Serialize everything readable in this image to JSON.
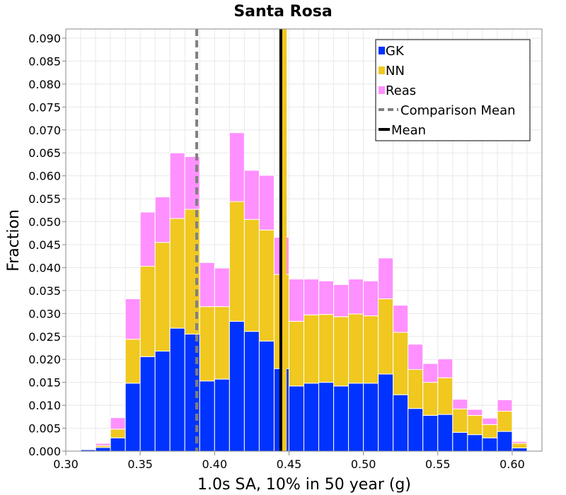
{
  "chart_data": {
    "type": "bar",
    "stacked": true,
    "title": "Santa Rosa",
    "xlabel": "1.0s SA, 10% in 50 year (g)",
    "ylabel": "Fraction",
    "xlim": [
      0.3,
      0.62
    ],
    "ylim": [
      0,
      0.092
    ],
    "x_ticks": [
      "0.30",
      "0.35",
      "0.40",
      "0.45",
      "0.50",
      "0.55",
      "0.60"
    ],
    "y_ticks": [
      "0.000",
      "0.005",
      "0.010",
      "0.015",
      "0.020",
      "0.025",
      "0.030",
      "0.035",
      "0.040",
      "0.045",
      "0.050",
      "0.055",
      "0.060",
      "0.065",
      "0.070",
      "0.075",
      "0.080",
      "0.085",
      "0.090"
    ],
    "grid": true,
    "legend_position": "top-right",
    "bin_width": 0.01,
    "bin_starts": [
      0.3,
      0.31,
      0.32,
      0.33,
      0.34,
      0.35,
      0.36,
      0.37,
      0.38,
      0.39,
      0.4,
      0.41,
      0.42,
      0.43,
      0.44,
      0.45,
      0.46,
      0.47,
      0.48,
      0.49,
      0.5,
      0.51,
      0.52,
      0.53,
      0.54,
      0.55,
      0.56,
      0.57,
      0.58,
      0.59,
      0.6
    ],
    "series": [
      {
        "name": "GK",
        "color": "#0033ff",
        "values": [
          0.0001,
          0.0003,
          0.0008,
          0.0029,
          0.0148,
          0.0206,
          0.0218,
          0.0268,
          0.0255,
          0.0153,
          0.0157,
          0.0283,
          0.0261,
          0.024,
          0.018,
          0.0142,
          0.0148,
          0.015,
          0.0142,
          0.0148,
          0.0148,
          0.0168,
          0.0123,
          0.0093,
          0.0078,
          0.008,
          0.0041,
          0.0036,
          0.0029,
          0.0043,
          0.0007
        ]
      },
      {
        "name": "NN",
        "color": "#f0c820",
        "values": [
          0.0,
          0.0,
          0.0004,
          0.0019,
          0.0096,
          0.0197,
          0.0237,
          0.0239,
          0.0272,
          0.0162,
          0.0158,
          0.0261,
          0.0244,
          0.0242,
          0.0205,
          0.0141,
          0.0149,
          0.0148,
          0.0151,
          0.0151,
          0.0147,
          0.0164,
          0.0136,
          0.0085,
          0.0072,
          0.008,
          0.0051,
          0.0042,
          0.0029,
          0.0044,
          0.001
        ]
      },
      {
        "name": "Reas",
        "color": "#ff90ff",
        "values": [
          0.0,
          0.0,
          0.0005,
          0.0025,
          0.0088,
          0.0118,
          0.0099,
          0.0143,
          0.0115,
          0.0096,
          0.0084,
          0.015,
          0.0107,
          0.0119,
          0.0081,
          0.0092,
          0.0078,
          0.0073,
          0.007,
          0.0076,
          0.0076,
          0.0089,
          0.0059,
          0.0055,
          0.0041,
          0.0041,
          0.0021,
          0.0013,
          0.0014,
          0.0025,
          0.0004
        ]
      }
    ],
    "lines": [
      {
        "name": "Comparison Mean",
        "x": 0.388,
        "color": "#808080",
        "dashed": true
      },
      {
        "name": "Mean",
        "x": 0.4445,
        "color": "#000000",
        "dashed": false
      }
    ],
    "highlight_line": {
      "x": 0.4468,
      "color": "#f0c820"
    }
  }
}
